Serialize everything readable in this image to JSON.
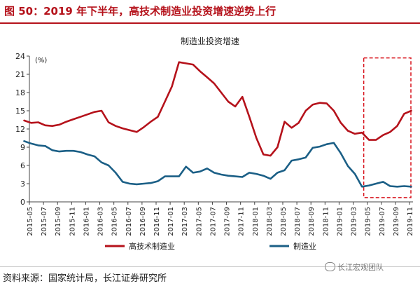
{
  "header": {
    "title": "图 50：2019 年下半年，高技术制造业投资增速逆势上行"
  },
  "footer": {
    "source": "资料来源：国家统计局，长江证券研究所",
    "watermark": "长江宏观团队"
  },
  "chart_data": {
    "type": "line",
    "title": "制造业投资增速",
    "ylabel_unit": "(%)",
    "ylim": [
      0,
      24
    ],
    "yticks": [
      0,
      3,
      6,
      9,
      12,
      15,
      18,
      21,
      24
    ],
    "xtick_labels": [
      "2015-05",
      "2015-07",
      "2015-09",
      "2015-11",
      "2016-01",
      "2016-03",
      "2016-05",
      "2016-07",
      "2016-09",
      "2016-11",
      "2017-01",
      "2017-03",
      "2017-05",
      "2017-07",
      "2017-09",
      "2017-11",
      "2018-01",
      "2018-03",
      "2018-05",
      "2018-07",
      "2018-09",
      "2018-11",
      "2019-01",
      "2019-03",
      "2019-05",
      "2019-07",
      "2019-09",
      "2019-11"
    ],
    "grid": false,
    "legend_position": "bottom",
    "colors": {
      "high_tech": "#b5121b",
      "manufacturing": "#1b5f86",
      "highlight_box": "#d8121b"
    },
    "highlight_range": [
      "2019-05",
      "2019-11"
    ],
    "x_points": [
      "2015-04",
      "2015-05",
      "2015-06",
      "2015-07",
      "2015-08",
      "2015-09",
      "2015-10",
      "2015-11",
      "2015-12",
      "2016-01",
      "2016-02",
      "2016-03",
      "2016-04",
      "2016-05",
      "2016-06",
      "2016-07",
      "2016-08",
      "2016-09",
      "2016-10",
      "2016-11",
      "2016-12",
      "2017-01",
      "2017-02",
      "2017-03",
      "2017-04",
      "2017-05",
      "2017-06",
      "2017-07",
      "2017-08",
      "2017-09",
      "2017-10",
      "2017-11",
      "2017-12",
      "2018-01",
      "2018-02",
      "2018-03",
      "2018-04",
      "2018-05",
      "2018-06",
      "2018-07",
      "2018-08",
      "2018-09",
      "2018-10",
      "2018-11",
      "2018-12",
      "2019-01",
      "2019-02",
      "2019-03",
      "2019-04",
      "2019-05",
      "2019-06",
      "2019-07",
      "2019-08",
      "2019-09",
      "2019-10",
      "2019-11"
    ],
    "series": [
      {
        "name": "高技术制造业",
        "key": "high_tech",
        "values": [
          13.4,
          13.0,
          13.1,
          12.6,
          12.5,
          12.7,
          13.2,
          13.6,
          14.0,
          14.4,
          14.8,
          15.0,
          13.1,
          12.5,
          12.1,
          11.8,
          11.5,
          12.3,
          13.2,
          14.0,
          16.5,
          19.0,
          23.0,
          22.8,
          22.6,
          21.5,
          20.5,
          19.5,
          18.0,
          16.5,
          15.7,
          17.3,
          14.0,
          10.5,
          7.8,
          7.6,
          9.0,
          13.2,
          12.2,
          13.0,
          15.0,
          16.0,
          16.3,
          16.2,
          15.0,
          13.0,
          11.7,
          11.2,
          11.4,
          10.2,
          10.2,
          11.0,
          11.5,
          12.5,
          14.5,
          15.0
        ]
      },
      {
        "name": "制造业",
        "key": "manufacturing",
        "values": [
          10.0,
          9.6,
          9.3,
          9.2,
          8.5,
          8.3,
          8.4,
          8.4,
          8.2,
          7.8,
          7.5,
          6.5,
          6.0,
          4.8,
          3.3,
          3.0,
          2.9,
          3.0,
          3.1,
          3.4,
          4.2,
          4.2,
          4.2,
          5.8,
          4.8,
          5.0,
          5.5,
          4.8,
          4.5,
          4.3,
          4.2,
          4.1,
          4.8,
          4.6,
          4.3,
          3.8,
          4.8,
          5.2,
          6.8,
          7.0,
          7.3,
          8.9,
          9.1,
          9.5,
          9.7,
          8.0,
          5.9,
          4.6,
          2.5,
          2.7,
          3.0,
          3.3,
          2.6,
          2.5,
          2.6,
          2.5
        ]
      }
    ]
  }
}
